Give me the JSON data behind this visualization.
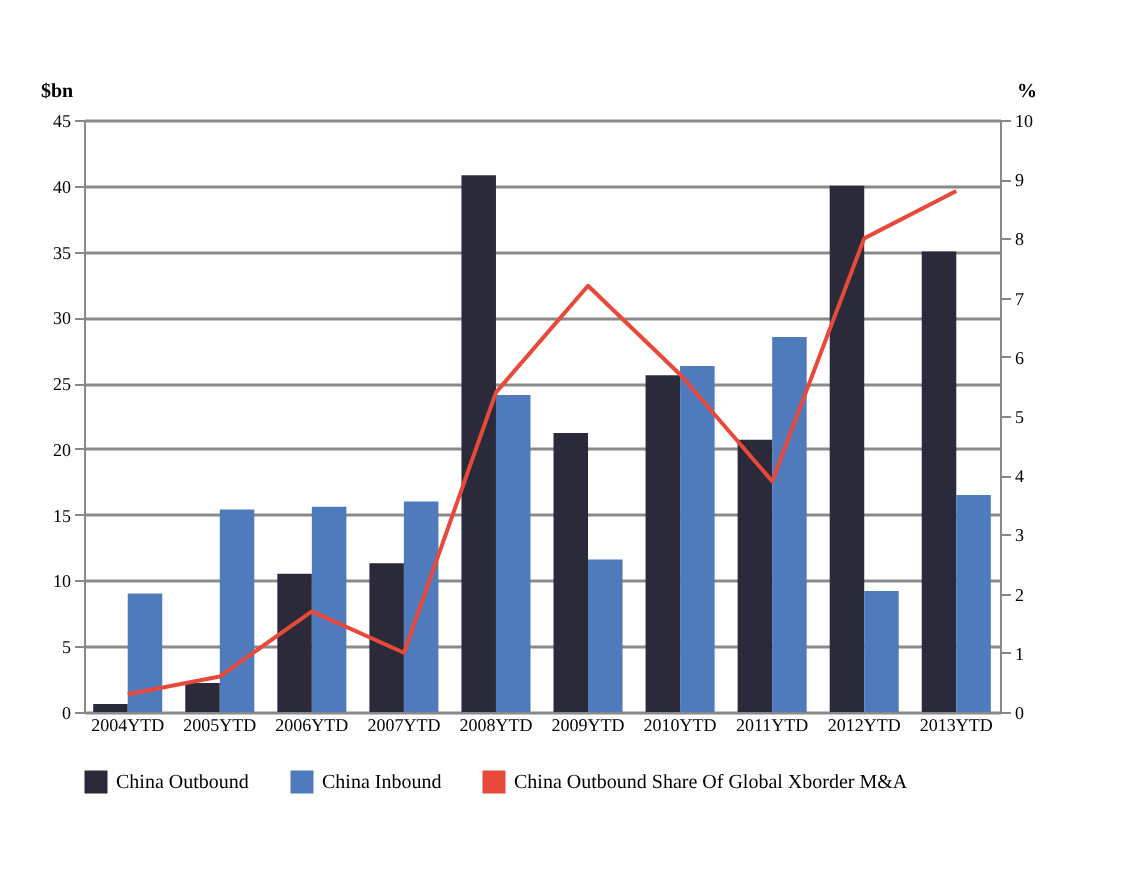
{
  "chart_data": {
    "type": "bar",
    "ylabel": "$bn",
    "y2label": "%",
    "categories": [
      "2004YTD",
      "2005YTD",
      "2006YTD",
      "2007YTD",
      "2008YTD",
      "2009YTD",
      "2010YTD",
      "2011YTD",
      "2012YTD",
      "2013YTD"
    ],
    "series": [
      {
        "name": "China Outbound",
        "color": "#2b2a3a",
        "values": [
          0.6,
          2.2,
          10.5,
          11.3,
          40.8,
          21.2,
          25.6,
          20.7,
          40.0,
          35.0
        ]
      },
      {
        "name": "China Inbound",
        "color": "#4f7bbd",
        "values": [
          9.0,
          15.4,
          15.6,
          16.0,
          24.1,
          11.6,
          26.3,
          28.5,
          9.2,
          16.5
        ]
      },
      {
        "name": "China Outbound Share Of Global Xborder M&A",
        "color": "#e8493b",
        "type": "line",
        "axis": "y2",
        "values": [
          0.3,
          0.6,
          1.7,
          1.0,
          5.4,
          7.2,
          5.7,
          3.9,
          8.0,
          8.8
        ]
      }
    ],
    "ylim": [
      0,
      45
    ],
    "yticks": [
      0,
      5,
      10,
      15,
      20,
      25,
      30,
      35,
      40,
      45
    ],
    "y2lim": [
      0,
      10
    ],
    "y2ticks": [
      0,
      1,
      2,
      3,
      4,
      5,
      6,
      7,
      8,
      9,
      10
    ],
    "grid": "y",
    "legend": "bottom"
  }
}
